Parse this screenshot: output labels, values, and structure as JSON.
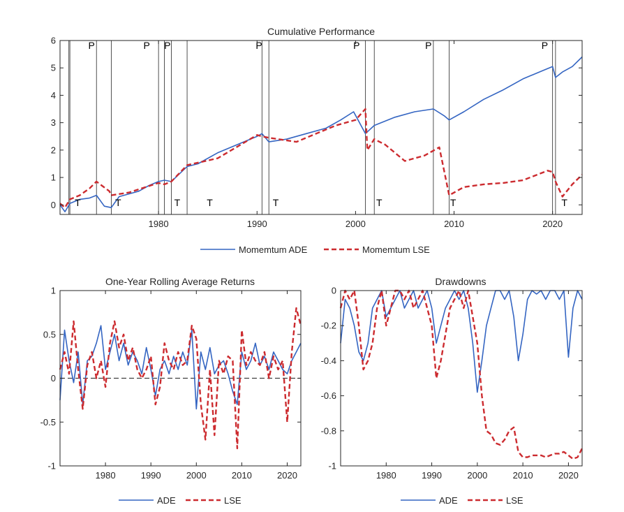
{
  "colors": {
    "ade": "#3465c2",
    "lse": "#cc2b2f",
    "axis": "#262626"
  },
  "chart_data": [
    {
      "type": "line",
      "title": "Cumulative Performance",
      "xlim": [
        1970,
        2023
      ],
      "ylim": [
        -0.35,
        6
      ],
      "xticks": [
        1980,
        1990,
        2000,
        2010,
        2020
      ],
      "yticks": [
        0,
        1,
        2,
        3,
        4,
        5,
        6
      ],
      "legend": [
        "Momemtum ADE",
        "Momemtum LSE"
      ],
      "peaks": [
        1971,
        1973.7,
        1980,
        1980.6,
        1990.5,
        2001,
        2007.9,
        2020
      ],
      "troughs": [
        1970.9,
        1975.2,
        1981.3,
        1982.9,
        1991.2,
        2001.9,
        2009.5,
        2020.3
      ],
      "labels": [
        {
          "text": "P",
          "x": 1973.2,
          "y": 5.7
        },
        {
          "text": "P",
          "x": 1978.8,
          "y": 5.7
        },
        {
          "text": "P",
          "x": 1980.9,
          "y": 5.7
        },
        {
          "text": "P",
          "x": 1990.2,
          "y": 5.7
        },
        {
          "text": "P",
          "x": 2000.1,
          "y": 5.7
        },
        {
          "text": "P",
          "x": 2007.4,
          "y": 5.7
        },
        {
          "text": "P",
          "x": 2019.2,
          "y": 5.7
        },
        {
          "text": "T",
          "x": 1971.8,
          "y": -0.05
        },
        {
          "text": "T",
          "x": 1975.9,
          "y": -0.05
        },
        {
          "text": "T",
          "x": 1981.9,
          "y": -0.05
        },
        {
          "text": "T",
          "x": 1985.2,
          "y": -0.05
        },
        {
          "text": "T",
          "x": 1991.9,
          "y": -0.05
        },
        {
          "text": "T",
          "x": 2002.4,
          "y": -0.05
        },
        {
          "text": "T",
          "x": 2009.9,
          "y": -0.05
        },
        {
          "text": "T",
          "x": 2021.2,
          "y": -0.05
        }
      ],
      "series": [
        {
          "name": "Momemtum ADE",
          "x": [
            1970,
            1970.5,
            1971,
            1972,
            1973,
            1973.7,
            1974.5,
            1975.2,
            1976,
            1977,
            1978,
            1979,
            1980,
            1980.6,
            1981.3,
            1982.9,
            1984,
            1986,
            1988,
            1990,
            1990.5,
            1991.2,
            1993,
            1995,
            1997,
            1998.5,
            1999.8,
            2001,
            2001.9,
            2004,
            2006,
            2007.9,
            2009,
            2009.5,
            2011,
            2013,
            2015,
            2017,
            2019,
            2020,
            2020.3,
            2021,
            2022,
            2023
          ],
          "y": [
            0,
            -0.25,
            0.05,
            0.2,
            0.25,
            0.35,
            -0.05,
            -0.1,
            0.3,
            0.4,
            0.5,
            0.7,
            0.85,
            0.9,
            0.85,
            1.4,
            1.5,
            1.9,
            2.2,
            2.5,
            2.6,
            2.3,
            2.4,
            2.6,
            2.8,
            3.1,
            3.4,
            2.6,
            2.9,
            3.2,
            3.4,
            3.5,
            3.25,
            3.1,
            3.4,
            3.85,
            4.2,
            4.6,
            4.9,
            5.05,
            4.65,
            4.85,
            5.05,
            5.4
          ]
        },
        {
          "name": "Momemtum LSE",
          "x": [
            1970,
            1970.5,
            1971,
            1972,
            1973,
            1973.7,
            1975,
            1975.2,
            1977,
            1980,
            1980.6,
            1981.3,
            1982.9,
            1986,
            1990,
            1990.5,
            1991.2,
            1994,
            1996,
            1998,
            2000,
            2001,
            2001.2,
            2001.9,
            2003,
            2005,
            2007,
            2008.5,
            2009.5,
            2011,
            2013,
            2015,
            2017,
            2019.5,
            2020,
            2020.3,
            2021,
            2022,
            2023
          ],
          "y": [
            0.05,
            -0.1,
            0.2,
            0.35,
            0.6,
            0.85,
            0.5,
            0.35,
            0.45,
            0.8,
            0.75,
            0.85,
            1.45,
            1.7,
            2.55,
            2.5,
            2.45,
            2.3,
            2.6,
            2.9,
            3.1,
            3.5,
            2.0,
            2.4,
            2.2,
            1.6,
            1.8,
            2.1,
            0.35,
            0.65,
            0.75,
            0.8,
            0.9,
            1.25,
            1.2,
            0.85,
            0.3,
            0.75,
            1.1
          ]
        }
      ]
    },
    {
      "type": "line",
      "title": "One-Year Rolling Average Returns",
      "xlim": [
        1970,
        2023
      ],
      "ylim": [
        -1,
        1
      ],
      "xticks": [
        1980,
        1990,
        2000,
        2010,
        2020
      ],
      "yticks": [
        -1,
        -0.5,
        0,
        0.5,
        1
      ],
      "ytick_labels": [
        "-1",
        "-0.5",
        "0",
        "0.5",
        "1"
      ],
      "zero_line": 0,
      "legend": [
        "ADE",
        "LSE"
      ],
      "series": [
        {
          "name": "ADE",
          "x": [
            1970,
            1971,
            1972,
            1973,
            1974,
            1975,
            1976,
            1977,
            1978,
            1979,
            1980,
            1981,
            1982,
            1983,
            1984,
            1985,
            1986,
            1987,
            1988,
            1989,
            1990,
            1991,
            1992,
            1993,
            1994,
            1995,
            1996,
            1997,
            1998,
            1999,
            2000,
            2001,
            2002,
            2003,
            2004,
            2005,
            2006,
            2007,
            2008,
            2009,
            2010,
            2011,
            2012,
            2013,
            2014,
            2015,
            2016,
            2017,
            2018,
            2019,
            2020,
            2021,
            2022,
            2023
          ],
          "y": [
            -0.25,
            0.55,
            0.2,
            -0.05,
            0.3,
            -0.3,
            0.2,
            0.25,
            0.4,
            0.6,
            0.1,
            0.3,
            0.5,
            0.2,
            0.4,
            0.15,
            0.3,
            0.2,
            0.05,
            0.35,
            0.1,
            -0.2,
            0.1,
            0.2,
            0.05,
            0.25,
            0.1,
            0.3,
            0.15,
            0.55,
            -0.35,
            0.3,
            0.1,
            0.35,
            0.05,
            0.15,
            0.2,
            0.05,
            -0.15,
            -0.3,
            0.3,
            0.1,
            0.2,
            0.4,
            0.15,
            0.25,
            0.1,
            0.3,
            0.2,
            0.1,
            0.05,
            0.2,
            0.3,
            0.4
          ]
        },
        {
          "name": "LSE",
          "x": [
            1970,
            1971,
            1972,
            1973,
            1974,
            1975,
            1976,
            1977,
            1978,
            1979,
            1980,
            1981,
            1982,
            1983,
            1984,
            1985,
            1986,
            1987,
            1988,
            1989,
            1990,
            1991,
            1992,
            1993,
            1994,
            1995,
            1996,
            1997,
            1998,
            1999,
            2000,
            2001,
            2002,
            2003,
            2004,
            2005,
            2006,
            2007,
            2008,
            2009,
            2010,
            2011,
            2012,
            2013,
            2014,
            2015,
            2016,
            2017,
            2018,
            2019,
            2020,
            2021,
            2022,
            2023
          ],
          "y": [
            0.1,
            0.3,
            0.05,
            0.65,
            0.1,
            -0.35,
            0.15,
            0.3,
            0.0,
            0.2,
            -0.1,
            0.4,
            0.65,
            0.35,
            0.5,
            0.2,
            0.35,
            0.1,
            0.0,
            0.1,
            0.25,
            -0.3,
            -0.1,
            0.4,
            0.2,
            0.1,
            0.3,
            0.15,
            0.2,
            0.6,
            0.45,
            -0.3,
            -0.7,
            0.1,
            -0.65,
            0.2,
            0.05,
            0.25,
            0.2,
            -0.8,
            0.55,
            0.15,
            0.3,
            0.2,
            0.15,
            0.3,
            0.0,
            0.25,
            0.1,
            0.2,
            -0.5,
            0.3,
            0.8,
            0.6
          ]
        }
      ]
    },
    {
      "type": "line",
      "title": "Drawdowns",
      "xlim": [
        1970,
        2023
      ],
      "ylim": [
        -1,
        0
      ],
      "xticks": [
        1980,
        1990,
        2000,
        2010,
        2020
      ],
      "yticks": [
        -1,
        -0.8,
        -0.6,
        -0.4,
        -0.2,
        0
      ],
      "ytick_labels": [
        "-1",
        "-0.8",
        "-0.6",
        "-0.4",
        "-0.2",
        "0"
      ],
      "legend": [
        "ADE",
        "LSE"
      ],
      "series": [
        {
          "name": "ADE",
          "x": [
            1970,
            1971,
            1972,
            1973,
            1974,
            1975,
            1976,
            1977,
            1978,
            1979,
            1980,
            1981,
            1982,
            1983,
            1984,
            1985,
            1986,
            1987,
            1988,
            1989,
            1990,
            1991,
            1992,
            1993,
            1994,
            1995,
            1996,
            1997,
            1998,
            1999,
            2000,
            2001,
            2002,
            2003,
            2004,
            2005,
            2006,
            2007,
            2008,
            2009,
            2010,
            2011,
            2012,
            2013,
            2014,
            2015,
            2016,
            2017,
            2018,
            2019,
            2020,
            2021,
            2022,
            2023
          ],
          "y": [
            -0.3,
            -0.05,
            -0.1,
            -0.2,
            -0.35,
            -0.4,
            -0.3,
            -0.1,
            -0.05,
            0,
            -0.15,
            -0.1,
            -0.05,
            0,
            -0.1,
            -0.05,
            0,
            -0.1,
            -0.05,
            0,
            -0.1,
            -0.3,
            -0.2,
            -0.1,
            -0.05,
            0,
            -0.05,
            0,
            -0.1,
            -0.3,
            -0.58,
            -0.4,
            -0.2,
            -0.1,
            0,
            0,
            -0.05,
            0,
            -0.15,
            -0.4,
            -0.25,
            -0.05,
            0,
            -0.02,
            0,
            -0.05,
            0,
            0,
            -0.05,
            0,
            -0.38,
            -0.1,
            0,
            -0.05
          ]
        },
        {
          "name": "LSE",
          "x": [
            1970,
            1971,
            1972,
            1973,
            1974,
            1975,
            1976,
            1977,
            1978,
            1979,
            1980,
            1981,
            1982,
            1983,
            1984,
            1985,
            1986,
            1987,
            1988,
            1989,
            1990,
            1991,
            1992,
            1993,
            1994,
            1995,
            1996,
            1997,
            1998,
            1999,
            2000,
            2001,
            2002,
            2003,
            2004,
            2005,
            2006,
            2007,
            2008,
            2009,
            2010,
            2011,
            2012,
            2013,
            2014,
            2015,
            2016,
            2017,
            2018,
            2019,
            2020,
            2021,
            2022,
            2023
          ],
          "y": [
            -0.1,
            0,
            -0.05,
            0,
            -0.2,
            -0.45,
            -0.4,
            -0.3,
            -0.1,
            0,
            -0.2,
            -0.1,
            0,
            0,
            -0.05,
            0,
            -0.1,
            -0.05,
            0,
            -0.1,
            -0.2,
            -0.5,
            -0.4,
            -0.25,
            -0.1,
            -0.05,
            0,
            -0.1,
            0,
            -0.15,
            -0.3,
            -0.6,
            -0.8,
            -0.82,
            -0.87,
            -0.88,
            -0.85,
            -0.8,
            -0.78,
            -0.92,
            -0.95,
            -0.95,
            -0.94,
            -0.94,
            -0.94,
            -0.95,
            -0.94,
            -0.93,
            -0.93,
            -0.92,
            -0.94,
            -0.96,
            -0.95,
            -0.9
          ]
        }
      ]
    }
  ]
}
